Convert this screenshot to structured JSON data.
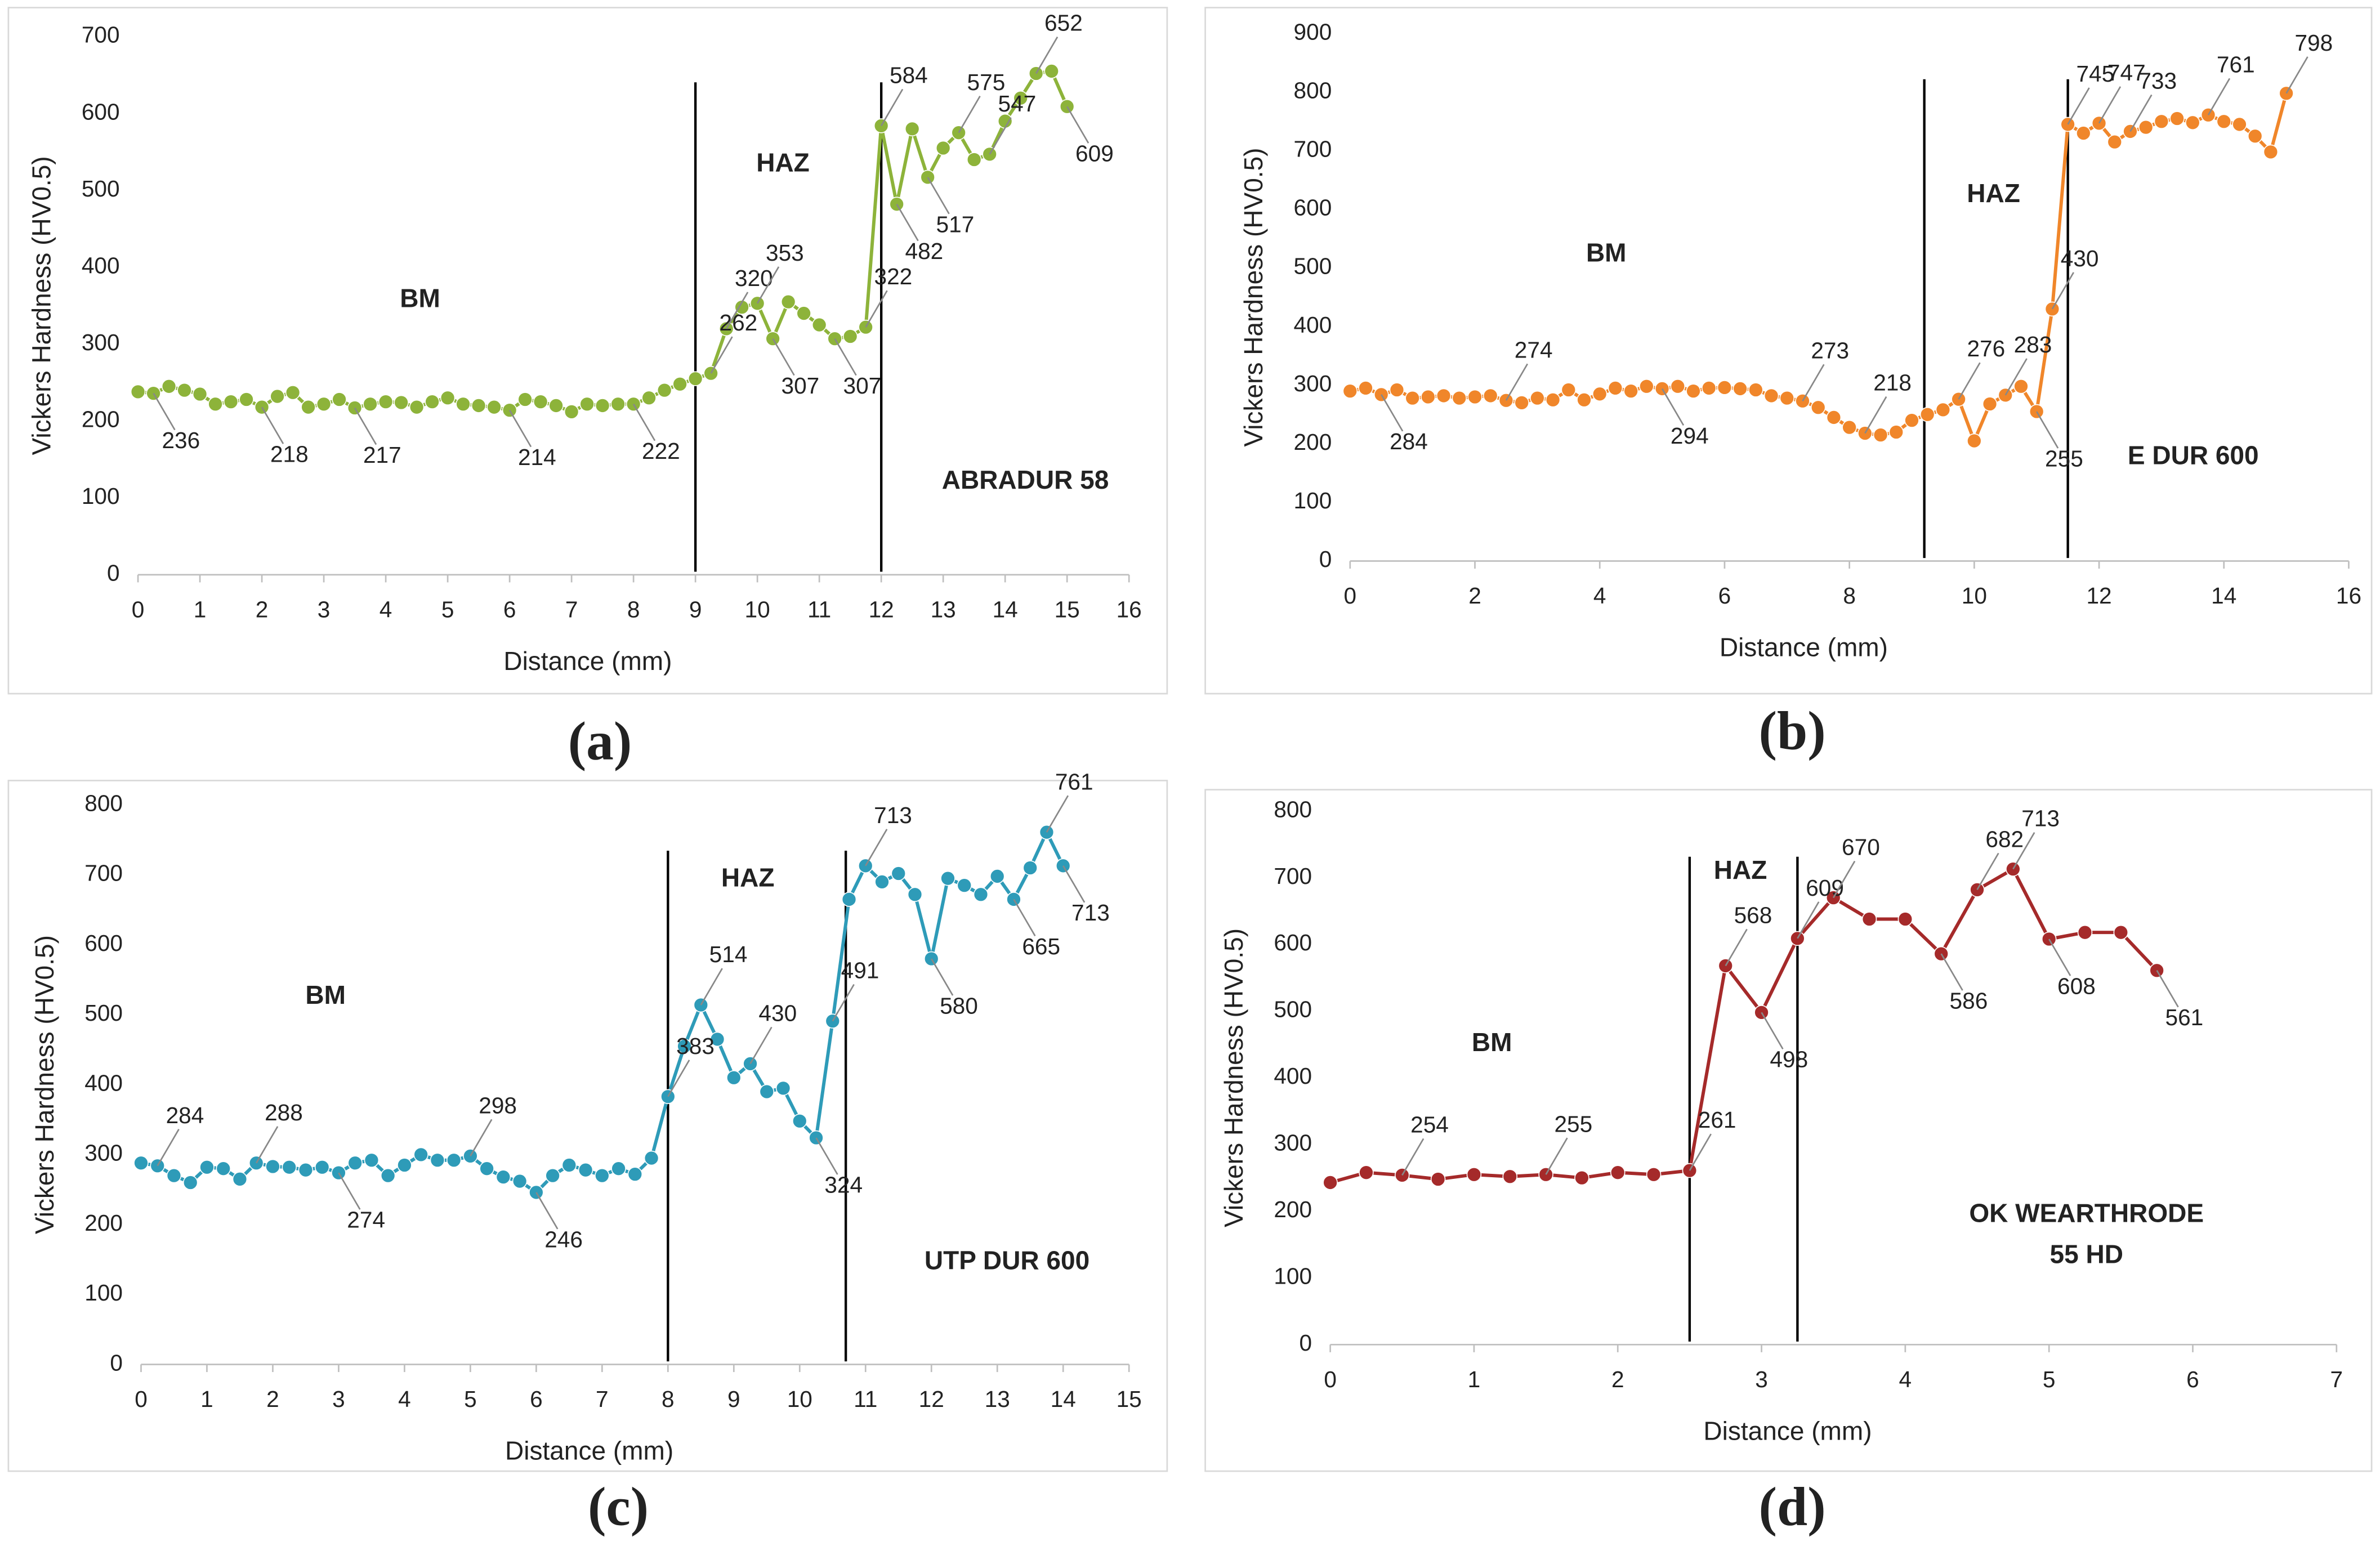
{
  "chart_data": [
    {
      "type": "line",
      "caption": "(a)",
      "x_label": "Distance (mm)",
      "y_label": "Vickers Hardness (HV0.5)",
      "annotations": [
        "BM",
        "HAZ",
        "ABRADUR 58"
      ],
      "vlines": [
        9,
        12
      ],
      "xlim": [
        0,
        16
      ],
      "xticks": [
        0,
        1,
        2,
        3,
        4,
        5,
        6,
        7,
        8,
        9,
        10,
        11,
        12,
        13,
        14,
        15,
        16
      ],
      "ylim": [
        0,
        700
      ],
      "yticks": [
        0,
        100,
        200,
        300,
        400,
        500,
        600,
        700
      ],
      "series": [
        {
          "name": "ABRADUR 58",
          "color": "#8db33a",
          "x": [
            0,
            0.25,
            0.5,
            0.75,
            1,
            1.25,
            1.5,
            1.75,
            2,
            2.25,
            2.5,
            2.75,
            3,
            3.25,
            3.5,
            3.75,
            4,
            4.25,
            4.5,
            4.75,
            5,
            5.25,
            5.5,
            5.75,
            6,
            6.25,
            6.5,
            6.75,
            7,
            7.25,
            7.5,
            7.75,
            8,
            8.25,
            8.5,
            8.75,
            9,
            9.25,
            9.5,
            9.75,
            10,
            10.25,
            10.5,
            10.75,
            11,
            11.25,
            11.5,
            11.75,
            12,
            12.25,
            12.5,
            12.75,
            13,
            13.25,
            13.5,
            13.75,
            14,
            14.25,
            14.5,
            14.75,
            15
          ],
          "values": [
            238,
            236,
            245,
            240,
            235,
            222,
            225,
            228,
            218,
            232,
            237,
            218,
            222,
            228,
            217,
            222,
            225,
            224,
            218,
            225,
            230,
            222,
            220,
            218,
            214,
            228,
            225,
            220,
            212,
            222,
            220,
            222,
            222,
            230,
            240,
            248,
            255,
            262,
            320,
            348,
            353,
            307,
            355,
            340,
            325,
            307,
            310,
            322,
            584,
            482,
            580,
            517,
            555,
            575,
            540,
            547,
            590,
            620,
            652,
            655,
            609
          ],
          "value_labels": [
            null,
            "236",
            null,
            null,
            null,
            null,
            null,
            null,
            "218",
            null,
            null,
            null,
            null,
            null,
            "217",
            null,
            null,
            null,
            null,
            null,
            null,
            null,
            null,
            null,
            "214",
            null,
            null,
            null,
            null,
            null,
            null,
            null,
            "222",
            null,
            null,
            null,
            null,
            "262",
            "320",
            null,
            "353",
            "307",
            null,
            null,
            null,
            "307",
            null,
            "322",
            "584",
            "482",
            null,
            "517",
            null,
            "575",
            null,
            "547",
            null,
            null,
            "652",
            null,
            "609"
          ]
        }
      ]
    },
    {
      "type": "line",
      "caption": "(b)",
      "x_label": "Distance (mm)",
      "y_label": "Vickers Hardness (HV0.5)",
      "annotations": [
        "BM",
        "HAZ",
        "E DUR 600"
      ],
      "vlines": [
        9.2,
        11.5
      ],
      "xlim": [
        0,
        16
      ],
      "xticks": [
        0,
        2,
        4,
        6,
        8,
        10,
        12,
        14,
        16
      ],
      "ylim": [
        0,
        900
      ],
      "yticks": [
        0,
        100,
        200,
        300,
        400,
        500,
        600,
        700,
        800,
        900
      ],
      "series": [
        {
          "name": "E DUR 600",
          "color": "#f0862a",
          "x": [
            0,
            0.25,
            0.5,
            0.75,
            1,
            1.25,
            1.5,
            1.75,
            2,
            2.25,
            2.5,
            2.75,
            3,
            3.25,
            3.5,
            3.75,
            4,
            4.25,
            4.5,
            4.75,
            5,
            5.25,
            5.5,
            5.75,
            6,
            6.25,
            6.5,
            6.75,
            7,
            7.25,
            7.5,
            7.75,
            8,
            8.25,
            8.5,
            8.75,
            9,
            9.25,
            9.5,
            9.75,
            10,
            10.25,
            10.5,
            10.75,
            11,
            11.25,
            11.5,
            11.75,
            12,
            12.25,
            12.5,
            12.75,
            13,
            13.25,
            13.5,
            13.75,
            14,
            14.25,
            14.5,
            14.75,
            15
          ],
          "values": [
            290,
            295,
            284,
            292,
            278,
            280,
            282,
            278,
            280,
            282,
            274,
            270,
            278,
            275,
            292,
            275,
            285,
            295,
            290,
            298,
            294,
            298,
            290,
            295,
            296,
            294,
            292,
            282,
            278,
            273,
            262,
            245,
            228,
            218,
            215,
            220,
            240,
            250,
            258,
            276,
            205,
            268,
            283,
            298,
            255,
            430,
            745,
            730,
            747,
            715,
            733,
            740,
            750,
            755,
            748,
            761,
            750,
            745,
            725,
            698,
            798
          ],
          "value_labels": [
            null,
            null,
            "284",
            null,
            null,
            null,
            null,
            null,
            null,
            null,
            "274",
            null,
            null,
            null,
            null,
            null,
            null,
            null,
            null,
            null,
            "294",
            null,
            null,
            null,
            null,
            null,
            null,
            null,
            null,
            "273",
            null,
            null,
            null,
            "218",
            null,
            null,
            null,
            null,
            null,
            "276",
            null,
            null,
            "283",
            null,
            "255",
            "430",
            "745",
            null,
            "747",
            null,
            "733",
            null,
            null,
            null,
            null,
            "761",
            null,
            null,
            null,
            null,
            "798"
          ]
        }
      ]
    },
    {
      "type": "line",
      "caption": "(c)",
      "x_label": "Distance (mm)",
      "y_label": "Vickers Hardness (HV0.5)",
      "annotations": [
        "BM",
        "HAZ",
        "UTP DUR 600"
      ],
      "vlines": [
        8,
        10.7
      ],
      "xlim": [
        0,
        15
      ],
      "xticks": [
        0,
        1,
        2,
        3,
        4,
        5,
        6,
        7,
        8,
        9,
        10,
        11,
        12,
        13,
        14,
        15
      ],
      "ylim": [
        0,
        800
      ],
      "yticks": [
        0,
        100,
        200,
        300,
        400,
        500,
        600,
        700,
        800
      ],
      "series": [
        {
          "name": "UTP DUR 600",
          "color": "#2e9bb8",
          "x": [
            0,
            0.25,
            0.5,
            0.75,
            1,
            1.25,
            1.5,
            1.75,
            2,
            2.25,
            2.5,
            2.75,
            3,
            3.25,
            3.5,
            3.75,
            4,
            4.25,
            4.5,
            4.75,
            5,
            5.25,
            5.5,
            5.75,
            6,
            6.25,
            6.5,
            6.75,
            7,
            7.25,
            7.5,
            7.75,
            8,
            8.25,
            8.5,
            8.75,
            9,
            9.25,
            9.5,
            9.75,
            10,
            10.25,
            10.5,
            10.75,
            11,
            11.25,
            11.5,
            11.75,
            12,
            12.25,
            12.5,
            12.75,
            13,
            13.25,
            13.5,
            13.75,
            14
          ],
          "values": [
            288,
            284,
            270,
            260,
            282,
            280,
            265,
            288,
            283,
            282,
            278,
            282,
            274,
            288,
            292,
            270,
            285,
            300,
            292,
            292,
            298,
            280,
            268,
            262,
            246,
            270,
            285,
            278,
            270,
            280,
            272,
            295,
            383,
            455,
            514,
            465,
            410,
            430,
            390,
            395,
            348,
            324,
            491,
            665,
            713,
            690,
            702,
            672,
            580,
            695,
            685,
            672,
            698,
            665,
            710,
            761,
            713
          ],
          "value_labels": [
            null,
            "284",
            null,
            null,
            null,
            null,
            null,
            "288",
            null,
            null,
            null,
            null,
            "274",
            null,
            null,
            null,
            null,
            null,
            null,
            null,
            "298",
            null,
            null,
            null,
            "246",
            null,
            null,
            null,
            null,
            null,
            null,
            null,
            "383",
            null,
            "514",
            null,
            null,
            "430",
            null,
            null,
            null,
            "324",
            "491",
            null,
            "713",
            null,
            null,
            null,
            "580",
            null,
            null,
            null,
            null,
            "665",
            null,
            "761",
            "713"
          ]
        }
      ]
    },
    {
      "type": "line",
      "caption": "(d)",
      "x_label": "Distance (mm)",
      "y_label": "Vickers Hardness (HV0.5)",
      "annotations": [
        "BM",
        "HAZ",
        "OK WEARTHRODE",
        "55 HD"
      ],
      "vlines": [
        2.5,
        3.25
      ],
      "xlim": [
        0,
        7
      ],
      "xticks": [
        0,
        1,
        2,
        3,
        4,
        5,
        6,
        7
      ],
      "ylim": [
        0,
        800
      ],
      "yticks": [
        0,
        100,
        200,
        300,
        400,
        500,
        600,
        700,
        800
      ],
      "series": [
        {
          "name": "OK WEARTHRODE 55 HD",
          "color": "#a52a2a",
          "x": [
            0,
            0.25,
            0.5,
            0.75,
            1,
            1.25,
            1.5,
            1.75,
            2,
            2.25,
            2.5,
            2.75,
            3,
            3.25,
            3.5,
            3.75,
            4,
            4.25,
            4.5,
            4.75,
            5,
            5.25,
            5.5,
            5.75
          ],
          "values": [
            243,
            258,
            254,
            248,
            255,
            252,
            255,
            250,
            258,
            255,
            261,
            568,
            498,
            609,
            670,
            638,
            638,
            586,
            682,
            713,
            608,
            618,
            618,
            561
          ],
          "value_labels": [
            null,
            null,
            "254",
            null,
            null,
            null,
            "255",
            null,
            null,
            null,
            "261",
            "568",
            "498",
            "609",
            "670",
            null,
            null,
            "586",
            "682",
            "713",
            "608",
            null,
            null,
            "561"
          ]
        }
      ]
    }
  ]
}
